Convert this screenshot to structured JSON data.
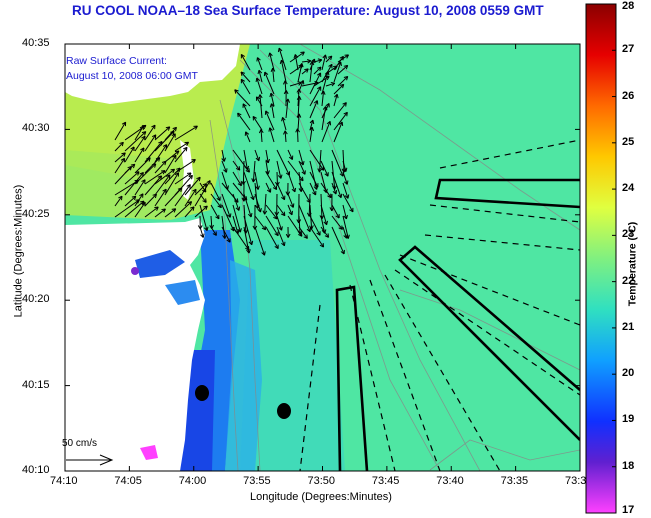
{
  "title": "RU COOL  NOAA–18  Sea Surface Temperature:  August 10, 2008 0559 GMT",
  "annotation": {
    "line1": "Raw Surface Current:",
    "line2": "August 10, 2008 06:00 GMT"
  },
  "scale_vector_label": "50 cm/s",
  "chart_data": {
    "type": "map",
    "xlabel": "Longitude (Degrees:Minutes)",
    "ylabel": "Latitude (Degrees:Minutes)",
    "x_ticks": [
      "74:10",
      "74:05",
      "74:00",
      "73:55",
      "73:50",
      "73:45",
      "73:40",
      "73:35",
      "73:3"
    ],
    "y_ticks": [
      "40:35",
      "40:30",
      "40:25",
      "40:20",
      "40:15",
      "40:10"
    ],
    "colorbar": {
      "title": "Temperature (°C)",
      "range": [
        17,
        28
      ],
      "ticks": [
        "28",
        "27",
        "26",
        "25",
        "24",
        "23",
        "22",
        "21",
        "20",
        "19",
        "18",
        "17"
      ]
    },
    "colors": {
      "land": "#ffffff",
      "water_main": "#4fe6a3",
      "water_warm": "#c8ef4a",
      "water_cold": "#1848e8",
      "vector": "#000000"
    }
  }
}
